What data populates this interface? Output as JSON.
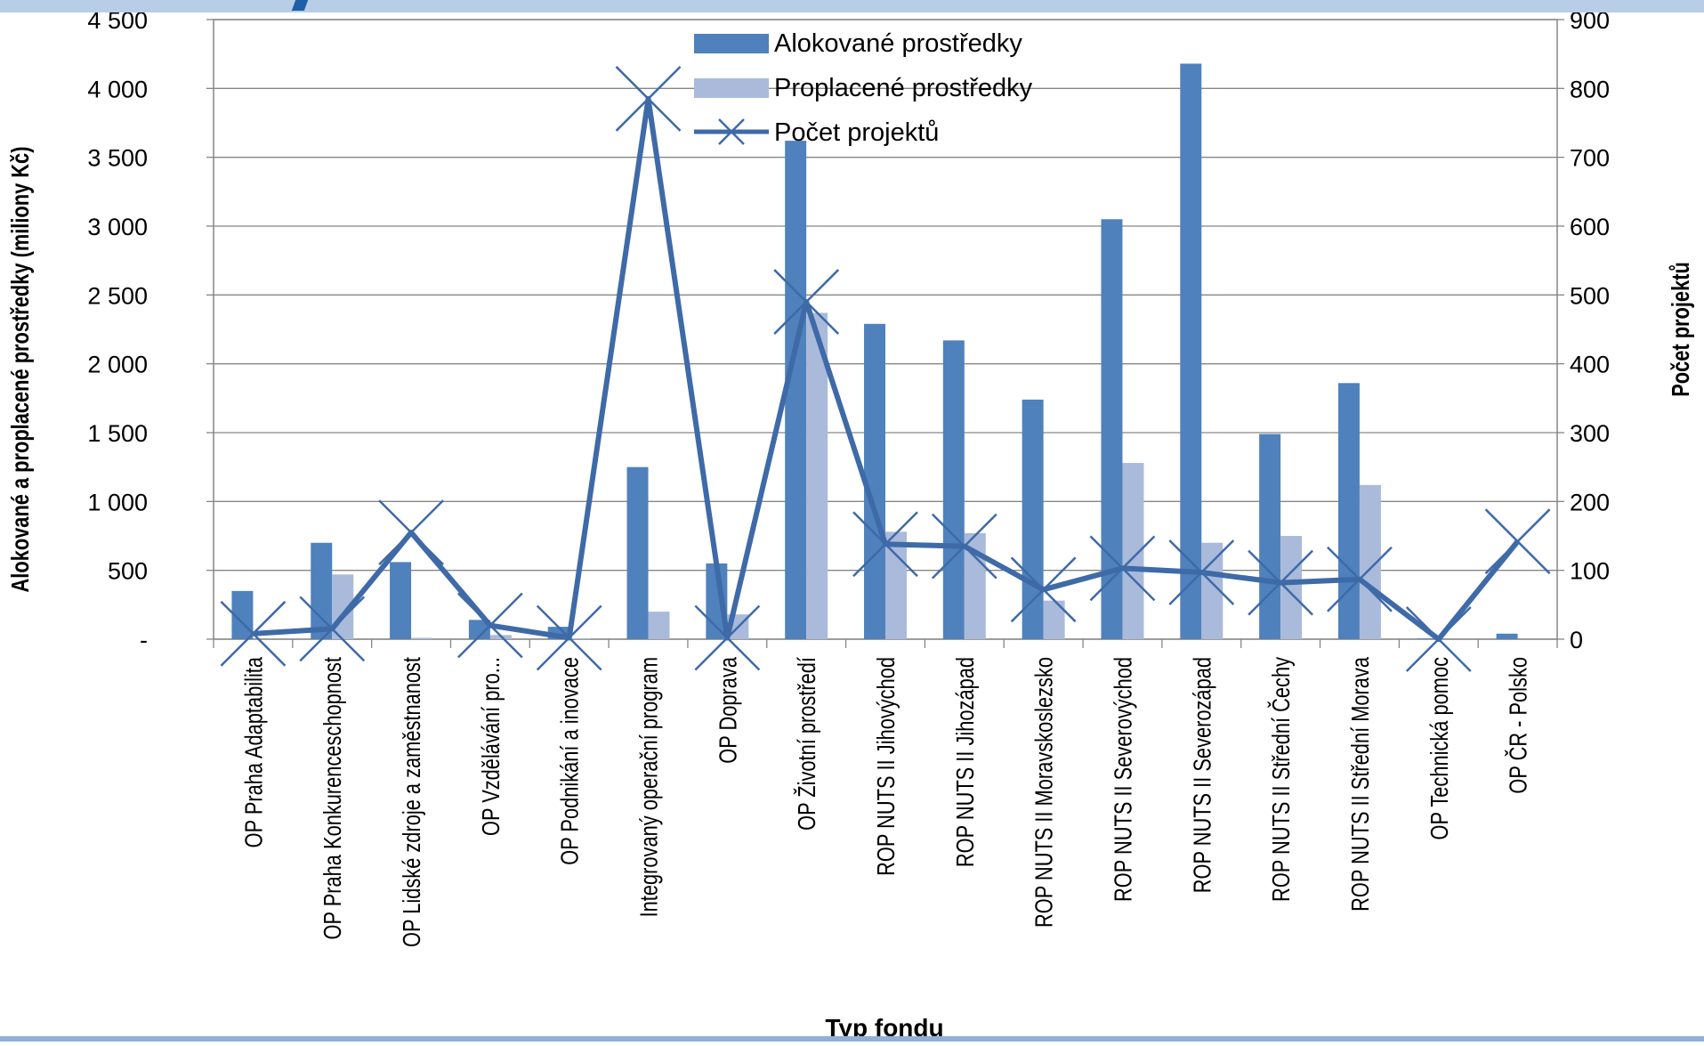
{
  "chart_data": {
    "type": "bar",
    "title": "",
    "xlabel": "Typ fondu",
    "ylabel": "Alokované a proplacené prostředky (miliony Kč)",
    "y2label": "Počet projektů",
    "ylim": [
      0,
      4500
    ],
    "y2lim": [
      0,
      900
    ],
    "yticks": [
      "-",
      "500",
      "1 000",
      "1 500",
      "2 000",
      "2 500",
      "3 000",
      "3 500",
      "4 000",
      "4 500"
    ],
    "y2ticks": [
      "0",
      "100",
      "200",
      "300",
      "400",
      "500",
      "600",
      "700",
      "800",
      "900"
    ],
    "grid": true,
    "legend_position": "top-center",
    "categories": [
      "OP Praha Adaptabilita",
      "OP Praha Konkurenceschopnost",
      "OP Lidské zdroje a zaměstnanost",
      "OP Vzdělávání pro...",
      "OP Podnikání a inovace",
      "Integrovaný operační program",
      "OP Doprava",
      "OP Životní prostředí",
      "ROP NUTS II Jihovýchod",
      "ROP NUTS II Jihozápad",
      "ROP NUTS II Moravskoslezsko",
      "ROP NUTS II Severovýchod",
      "ROP NUTS II Severozápad",
      "ROP NUTS II Střední Čechy",
      "ROP NUTS II Střední Morava",
      "OP Technická pomoc",
      "OP ČR - Polsko"
    ],
    "series": [
      {
        "name": "Alokované prostředky",
        "type": "bar",
        "axis": "left",
        "color": "#4f81bd",
        "values": [
          350,
          700,
          560,
          140,
          90,
          1250,
          550,
          3620,
          2290,
          2170,
          1740,
          3050,
          4180,
          1490,
          1860,
          5,
          40
        ]
      },
      {
        "name": "Proplacené prostředky",
        "type": "bar",
        "axis": "left",
        "color": "#aabadb",
        "values": [
          0,
          470,
          10,
          30,
          5,
          200,
          180,
          2370,
          780,
          770,
          280,
          1280,
          700,
          750,
          1120,
          0,
          0
        ]
      },
      {
        "name": "Počet projektů",
        "type": "line",
        "axis": "right",
        "color": "#3e6aa8",
        "marker": "x",
        "values": [
          8,
          15,
          155,
          20,
          2,
          785,
          2,
          490,
          138,
          135,
          72,
          103,
          97,
          82,
          87,
          0,
          142
        ]
      }
    ]
  }
}
